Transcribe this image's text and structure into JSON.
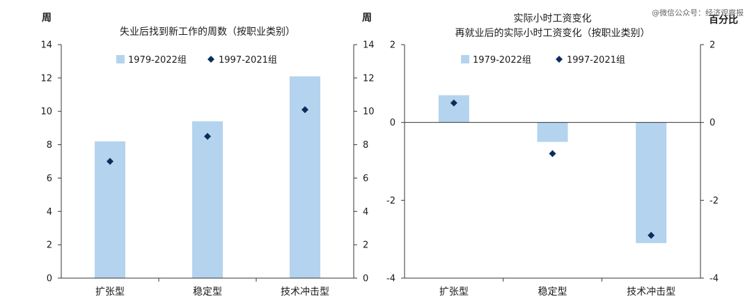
{
  "watermark": "@微信公众号：经济观察报",
  "colors": {
    "bar": "#b4d3ee",
    "marker": "#0b2d5b",
    "axis": "#333333"
  },
  "chart_data": [
    {
      "type": "bar",
      "title": "失业后找到新工作的周数（按职业类别）",
      "unit_left": "周",
      "unit_right": "周",
      "categories": [
        "扩张型",
        "稳定型",
        "技术冲击型"
      ],
      "ylim": [
        0,
        14
      ],
      "yticks": [
        "0",
        "2",
        "4",
        "6",
        "8",
        "10",
        "12",
        "14"
      ],
      "series": [
        {
          "name": "1979-2022组",
          "kind": "bar",
          "values": [
            8.2,
            9.4,
            12.1
          ]
        },
        {
          "name": "1997-2021组",
          "kind": "marker",
          "values": [
            7.0,
            8.5,
            10.1
          ]
        }
      ],
      "legend": "top"
    },
    {
      "type": "bar",
      "title": "实际小时工资变化",
      "subtitle": "再就业后的实际小时工资变化（按职业类别）",
      "unit_left": "",
      "unit_right": "百分比",
      "categories": [
        "扩张型",
        "稳定型",
        "技术冲击型"
      ],
      "ylim": [
        -4,
        2
      ],
      "yticks": [
        "-4",
        "-2",
        "0",
        "2"
      ],
      "series": [
        {
          "name": "1979-2022组",
          "kind": "bar",
          "values": [
            0.7,
            -0.5,
            -3.1
          ]
        },
        {
          "name": "1997-2021组",
          "kind": "marker",
          "values": [
            0.5,
            -0.8,
            -2.9
          ]
        }
      ],
      "legend": "top"
    }
  ]
}
